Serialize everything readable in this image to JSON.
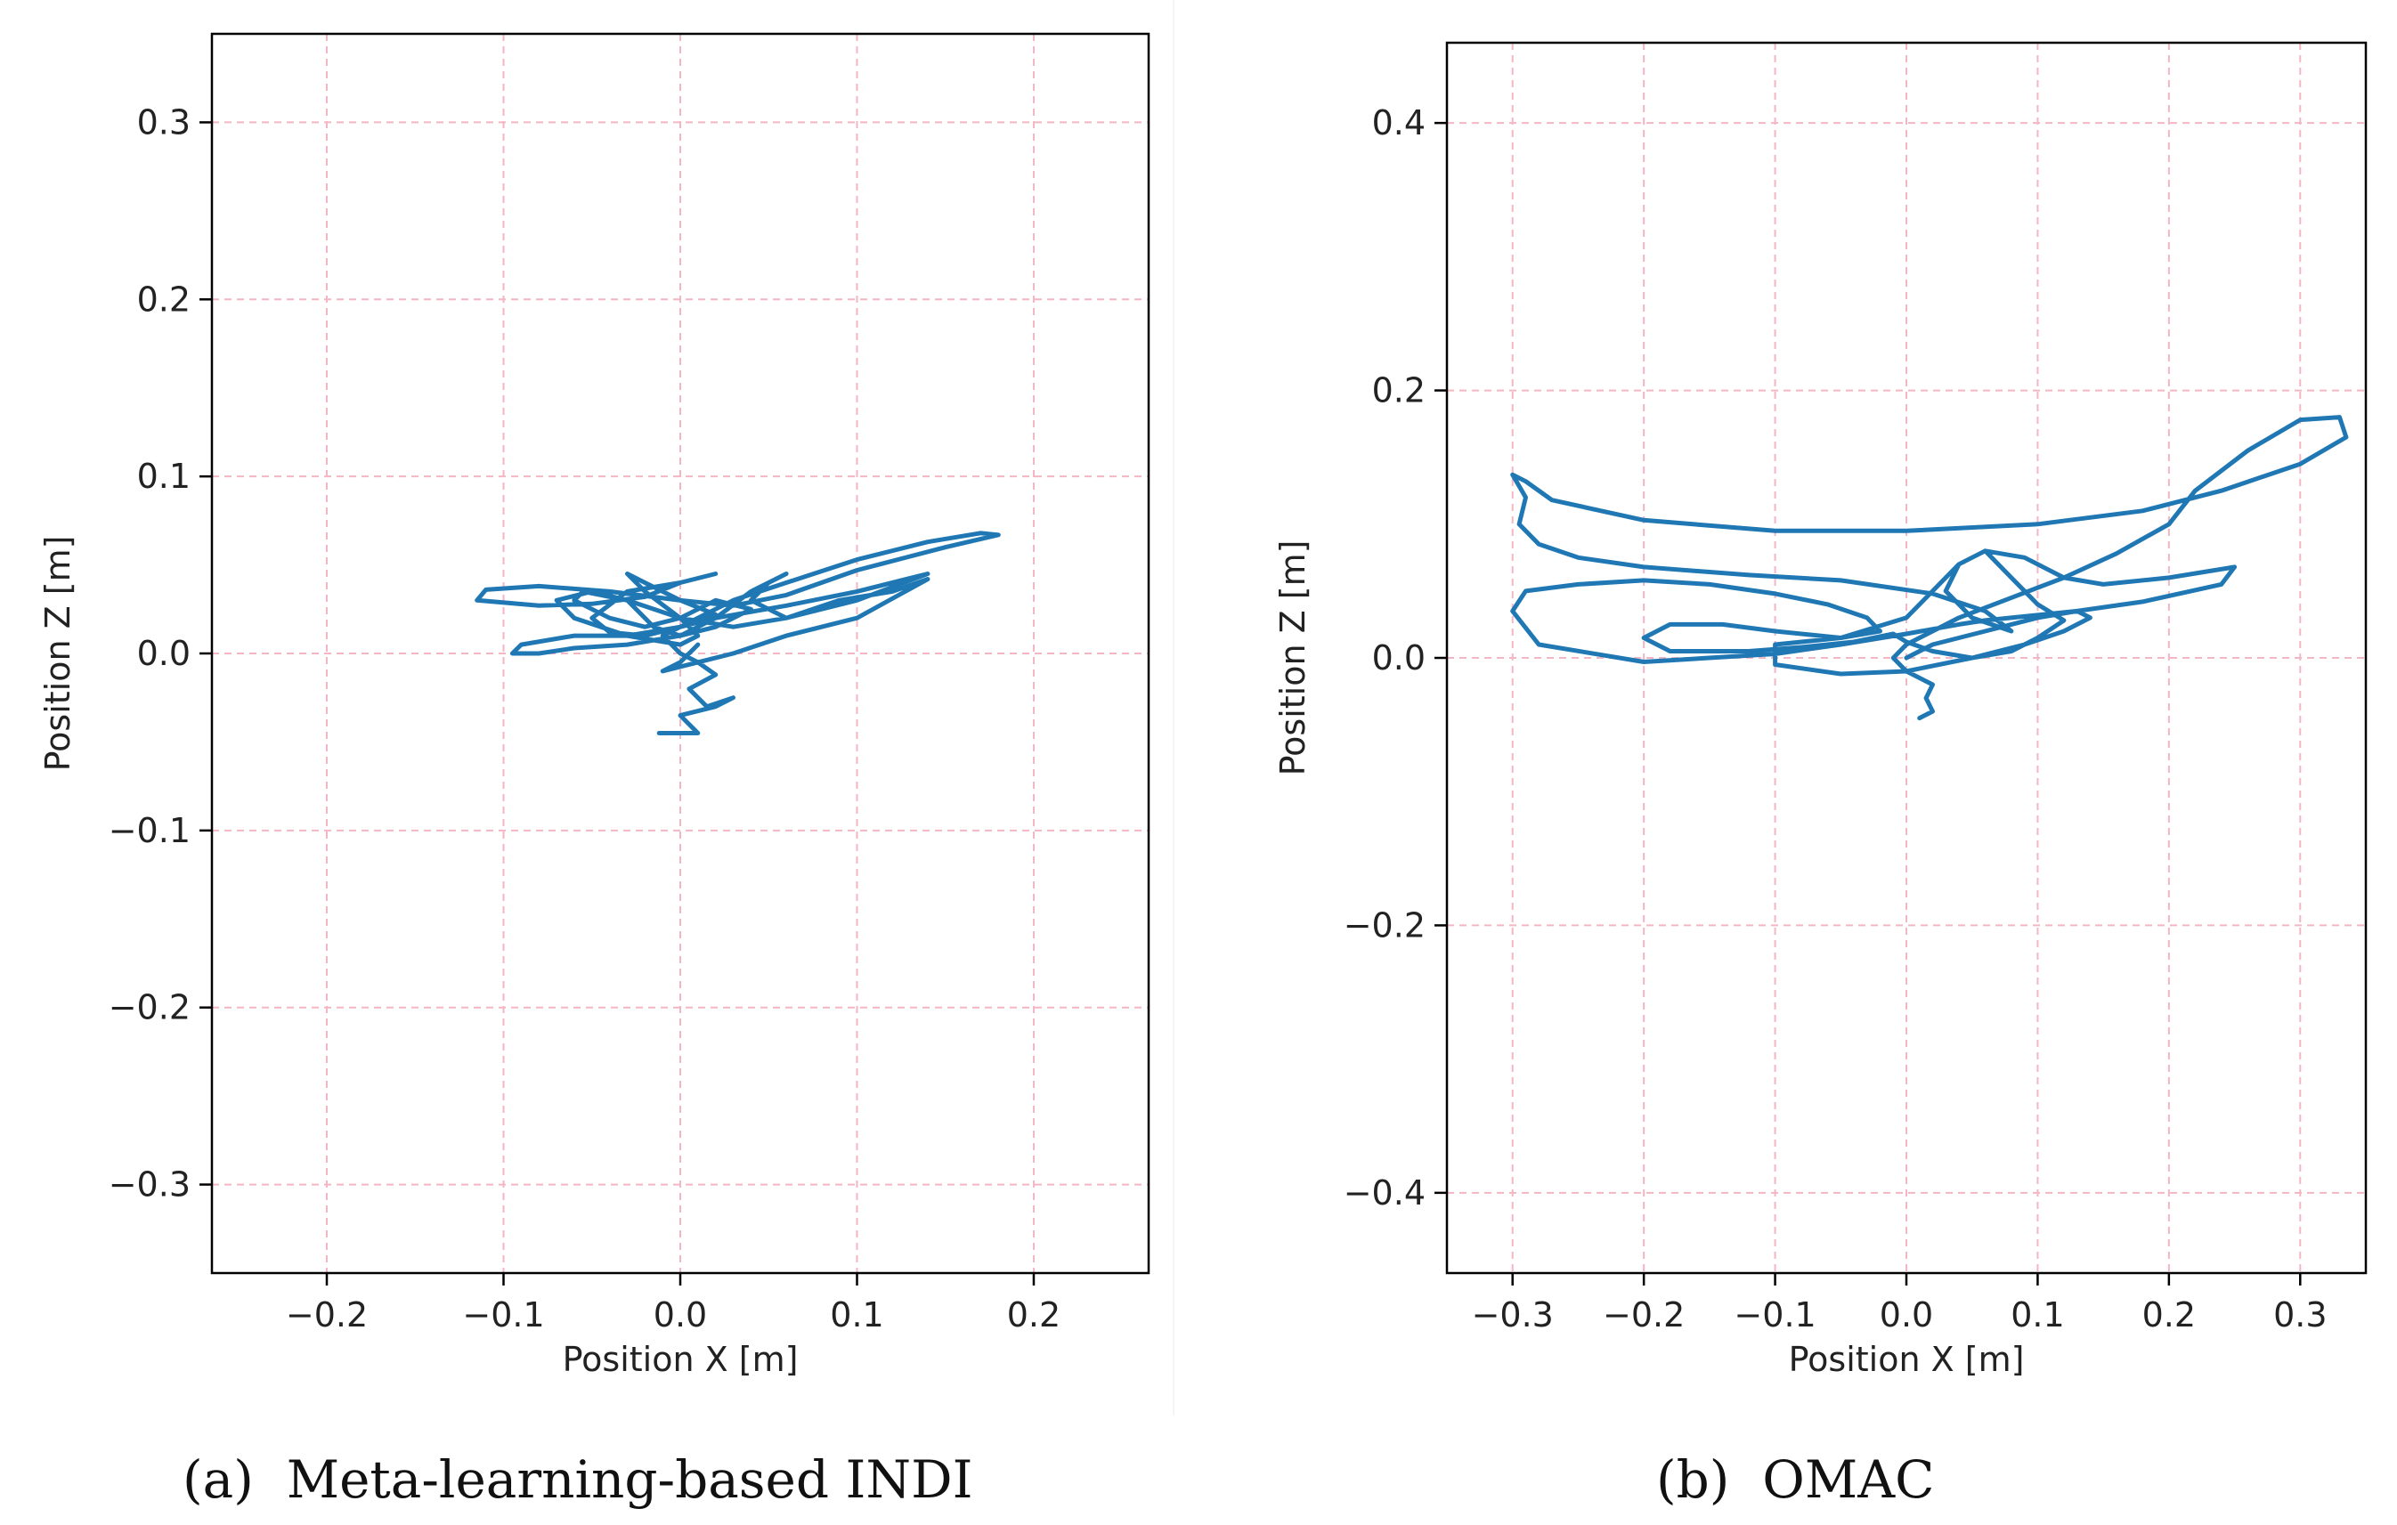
{
  "chart_data": [
    {
      "type": "line",
      "caption_label": "(a)",
      "caption_text": "Meta-learning-based INDI",
      "xlabel": "Position X [m]",
      "ylabel": "Position Z [m]",
      "xlim": [
        -0.265,
        0.265
      ],
      "ylim": [
        -0.35,
        0.35
      ],
      "xticks": [
        -0.2,
        -0.1,
        0.0,
        0.1,
        0.2
      ],
      "yticks": [
        -0.3,
        -0.2,
        -0.1,
        0.0,
        0.1,
        0.2,
        0.3
      ],
      "xtick_labels": [
        "−0.2",
        "−0.1",
        "0.0",
        "0.1",
        "0.2"
      ],
      "ytick_labels": [
        "−0.3",
        "−0.2",
        "−0.1",
        "0.0",
        "0.1",
        "0.2",
        "0.3"
      ],
      "grid": true,
      "grid_color": "#f4b6c2",
      "line_color": "#1f77b4",
      "series": [
        {
          "x": [
            -0.012,
            0.01,
            0.0,
            0.02,
            0.03,
            0.015,
            0.005,
            0.02,
            0.01,
            0.0,
            -0.01,
            0.01,
            0.03,
            0.06,
            0.1,
            0.14,
            0.17,
            0.18,
            0.15,
            0.1,
            0.06,
            0.03,
            0.0,
            -0.04,
            -0.08,
            -0.11,
            -0.115,
            -0.08,
            -0.05,
            -0.02,
            0.0,
            0.02,
            0.0,
            -0.03,
            -0.05,
            -0.04,
            -0.02,
            0.0,
            0.02,
            0.06,
            0.1,
            0.14,
            0.1,
            0.06,
            0.04,
            0.05,
            0.06,
            0.04,
            0.02,
            0.0,
            -0.03,
            -0.06,
            -0.08,
            -0.095,
            -0.09,
            -0.06,
            -0.03,
            0.0,
            0.02,
            0.0,
            -0.02,
            -0.03,
            -0.02,
            0.0,
            0.01,
            0.0,
            -0.03,
            -0.06,
            -0.07,
            -0.05,
            -0.03,
            -0.015,
            0.0,
            0.02,
            0.04,
            0.02,
            0.0,
            -0.02,
            -0.04,
            -0.06,
            -0.055,
            -0.03,
            0.0,
            0.03,
            0.06,
            0.09,
            0.12,
            0.14,
            0.1,
            0.06,
            0.03,
            0.01,
            -0.01,
            0.0,
            0.01
          ],
          "y": [
            -0.045,
            -0.045,
            -0.035,
            -0.03,
            -0.025,
            -0.03,
            -0.02,
            -0.012,
            -0.005,
            0.0,
            0.01,
            0.02,
            0.03,
            0.04,
            0.053,
            0.063,
            0.068,
            0.067,
            0.06,
            0.047,
            0.033,
            0.027,
            0.03,
            0.035,
            0.038,
            0.036,
            0.03,
            0.027,
            0.028,
            0.032,
            0.04,
            0.045,
            0.04,
            0.035,
            0.02,
            0.012,
            0.01,
            0.015,
            0.02,
            0.027,
            0.035,
            0.045,
            0.03,
            0.02,
            0.03,
            0.04,
            0.045,
            0.035,
            0.02,
            0.01,
            0.005,
            0.003,
            0.0,
            0.0,
            0.005,
            0.01,
            0.01,
            0.015,
            0.022,
            0.03,
            0.04,
            0.045,
            0.035,
            0.02,
            0.01,
            0.005,
            0.01,
            0.02,
            0.03,
            0.035,
            0.03,
            0.015,
            0.01,
            0.015,
            0.025,
            0.03,
            0.02,
            0.015,
            0.02,
            0.03,
            0.035,
            0.03,
            0.02,
            0.015,
            0.02,
            0.03,
            0.035,
            0.042,
            0.02,
            0.01,
            0.0,
            -0.005,
            -0.01,
            -0.005,
            0.005
          ]
        }
      ]
    },
    {
      "type": "line",
      "caption_label": "(b)",
      "caption_text": "OMAC",
      "xlabel": "Position X [m]",
      "ylabel": "Position Z [m]",
      "xlim": [
        -0.35,
        0.35
      ],
      "ylim": [
        -0.46,
        0.46
      ],
      "xticks": [
        -0.3,
        -0.2,
        -0.1,
        0.0,
        0.1,
        0.2,
        0.3
      ],
      "yticks": [
        -0.4,
        -0.2,
        0.0,
        0.2,
        0.4
      ],
      "xtick_labels": [
        "−0.3",
        "−0.2",
        "−0.1",
        "0.0",
        "0.1",
        "0.2",
        "0.3"
      ],
      "ytick_labels": [
        "−0.4",
        "−0.2",
        "0.0",
        "0.2",
        "0.4"
      ],
      "grid": true,
      "grid_color": "#f4b6c2",
      "line_color": "#1f77b4",
      "series": [
        {
          "x": [
            0.01,
            0.02,
            0.015,
            0.02,
            0.0,
            -0.01,
            0.0,
            0.02,
            0.04,
            0.08,
            0.12,
            0.16,
            0.2,
            0.22,
            0.26,
            0.3,
            0.33,
            0.335,
            0.3,
            0.24,
            0.18,
            0.1,
            0.0,
            -0.1,
            -0.2,
            -0.27,
            -0.29,
            -0.3,
            -0.29,
            -0.295,
            -0.28,
            -0.25,
            -0.2,
            -0.12,
            -0.05,
            0.02,
            0.06,
            0.08,
            0.05,
            0.03,
            0.04,
            0.06,
            0.09,
            0.12,
            0.15,
            0.2,
            0.25,
            0.24,
            0.18,
            0.13,
            0.08,
            0.06,
            0.04,
            0.0,
            -0.05,
            -0.1,
            -0.2,
            -0.28,
            -0.3,
            -0.29,
            -0.25,
            -0.2,
            -0.15,
            -0.1,
            -0.06,
            -0.03,
            -0.02,
            -0.05,
            -0.1,
            -0.14,
            -0.18,
            -0.2,
            -0.18,
            -0.12,
            -0.08,
            -0.04,
            -0.01,
            0.0,
            0.02,
            0.05,
            0.08,
            0.1,
            0.12,
            0.1,
            0.08,
            0.06,
            0.04,
            0.02,
            0.0,
            -0.05,
            -0.1,
            -0.1,
            -0.05,
            0.0,
            0.05,
            0.09,
            0.12,
            0.14,
            0.13,
            0.1,
            0.06,
            0.02,
            0.0
          ],
          "y": [
            -0.045,
            -0.04,
            -0.03,
            -0.02,
            -0.01,
            0.0,
            0.01,
            0.02,
            0.03,
            0.045,
            0.06,
            0.078,
            0.1,
            0.125,
            0.155,
            0.178,
            0.18,
            0.165,
            0.145,
            0.125,
            0.11,
            0.1,
            0.095,
            0.095,
            0.103,
            0.118,
            0.132,
            0.137,
            0.12,
            0.1,
            0.085,
            0.075,
            0.068,
            0.062,
            0.058,
            0.048,
            0.035,
            0.02,
            0.03,
            0.05,
            0.07,
            0.08,
            0.075,
            0.06,
            0.055,
            0.06,
            0.068,
            0.055,
            0.042,
            0.035,
            0.03,
            0.028,
            0.025,
            0.018,
            0.01,
            0.003,
            -0.003,
            0.01,
            0.035,
            0.05,
            0.055,
            0.058,
            0.055,
            0.048,
            0.04,
            0.03,
            0.02,
            0.015,
            0.02,
            0.025,
            0.025,
            0.015,
            0.005,
            0.005,
            0.008,
            0.012,
            0.018,
            0.012,
            0.005,
            0.0,
            0.005,
            0.015,
            0.028,
            0.04,
            0.06,
            0.08,
            0.07,
            0.05,
            0.03,
            0.015,
            0.01,
            -0.005,
            -0.012,
            -0.01,
            0.0,
            0.01,
            0.02,
            0.03,
            0.035,
            0.03,
            0.02,
            0.01,
            0.0
          ]
        }
      ]
    }
  ]
}
